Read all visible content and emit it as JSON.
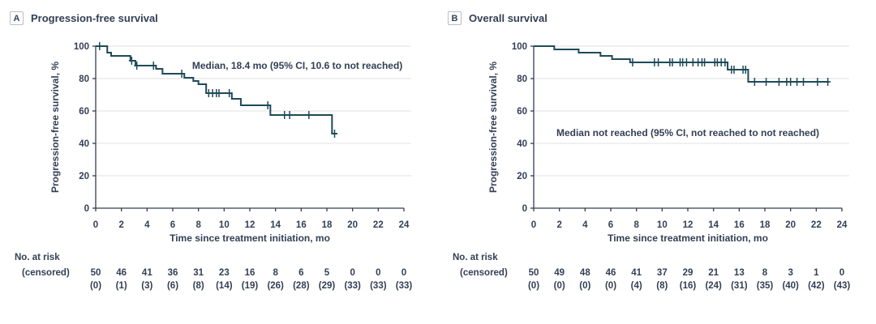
{
  "colors": {
    "curve": "#1f4a58",
    "text": "#333f54",
    "axis": "#333f54",
    "grid": "#e8e8e8",
    "panel_box_border": "#b9bdc4",
    "background": "#ffffff"
  },
  "chart_data": [
    {
      "type": "line",
      "subtype": "kaplan-meier-step",
      "panel_label": "A",
      "title": "Progression-free survival",
      "annotation": "Median, 18.4 mo (95% CI, 10.6 to not reached)",
      "annotation_anchor": {
        "t": 15.7,
        "s": 88
      },
      "xlabel": "Time since treatment initiation, mo",
      "ylabel": "Progression-free survival, %",
      "xlim": [
        0,
        24
      ],
      "ylim": [
        0,
        100
      ],
      "xticks": [
        0,
        2,
        4,
        6,
        8,
        10,
        12,
        14,
        16,
        18,
        20,
        22,
        24
      ],
      "yticks": [
        0,
        20,
        40,
        60,
        80,
        100
      ],
      "grid": "horizontal",
      "steps": [
        [
          0,
          100
        ],
        [
          0.9,
          96
        ],
        [
          1.2,
          94
        ],
        [
          2.7,
          91
        ],
        [
          3.1,
          88
        ],
        [
          4.7,
          86
        ],
        [
          5.2,
          83
        ],
        [
          6.9,
          80.5
        ],
        [
          7.6,
          78.5
        ],
        [
          8.0,
          76.5
        ],
        [
          8.6,
          71
        ],
        [
          10.6,
          67.5
        ],
        [
          11.3,
          63.5
        ],
        [
          13.6,
          57.5
        ],
        [
          18.4,
          46
        ]
      ],
      "curve_end_t": 18.8,
      "censor_marks": [
        [
          0.3,
          100
        ],
        [
          2.8,
          91
        ],
        [
          3.2,
          88
        ],
        [
          4.5,
          88
        ],
        [
          6.7,
          83
        ],
        [
          8.8,
          71
        ],
        [
          9.1,
          71
        ],
        [
          9.4,
          71
        ],
        [
          9.6,
          71
        ],
        [
          10.4,
          71
        ],
        [
          13.4,
          63.5
        ],
        [
          14.7,
          57.5
        ],
        [
          15.1,
          57.5
        ],
        [
          16.6,
          57.5
        ],
        [
          18.6,
          46
        ]
      ],
      "risk_table": {
        "row1_label": "No. at risk",
        "row2_label": "(censored)",
        "at_risk": [
          "50",
          "46",
          "41",
          "36",
          "31",
          "23",
          "16",
          "8",
          "6",
          "5",
          "0",
          "0",
          "0"
        ],
        "censored": [
          "(0)",
          "(1)",
          "(3)",
          "(6)",
          "(8)",
          "(14)",
          "(19)",
          "(26)",
          "(28)",
          "(29)",
          "(33)",
          "(33)",
          "(33)"
        ]
      }
    },
    {
      "type": "line",
      "subtype": "kaplan-meier-step",
      "panel_label": "B",
      "title": "Overall survival",
      "annotation": "Median not reached (95% CI, not reached to not reached)",
      "annotation_anchor": {
        "t": 12,
        "s": 46.5
      },
      "xlabel": "Time since treatment initiation, mo",
      "ylabel": "Progression-free survival, %",
      "xlim": [
        0,
        24
      ],
      "ylim": [
        0,
        100
      ],
      "xticks": [
        0,
        2,
        4,
        6,
        8,
        10,
        12,
        14,
        16,
        18,
        20,
        22,
        24
      ],
      "yticks": [
        0,
        20,
        40,
        60,
        80,
        100
      ],
      "grid": "horizontal",
      "steps": [
        [
          0,
          100
        ],
        [
          1.6,
          98
        ],
        [
          3.5,
          96
        ],
        [
          5.2,
          94
        ],
        [
          6.1,
          92
        ],
        [
          7.5,
          90
        ],
        [
          15.1,
          85.5
        ],
        [
          16.7,
          78
        ]
      ],
      "curve_end_t": 23.0,
      "censor_marks": [
        [
          7.7,
          90
        ],
        [
          9.4,
          90
        ],
        [
          9.7,
          90
        ],
        [
          10.6,
          90
        ],
        [
          10.8,
          90
        ],
        [
          11.4,
          90
        ],
        [
          11.6,
          90
        ],
        [
          11.9,
          90
        ],
        [
          12.4,
          90
        ],
        [
          12.8,
          90
        ],
        [
          13.1,
          90
        ],
        [
          13.3,
          90
        ],
        [
          14.1,
          90
        ],
        [
          14.3,
          90
        ],
        [
          14.6,
          90
        ],
        [
          14.9,
          90
        ],
        [
          15.4,
          85.5
        ],
        [
          15.6,
          85.5
        ],
        [
          16.3,
          85.5
        ],
        [
          16.5,
          85.5
        ],
        [
          17.2,
          78
        ],
        [
          18.1,
          78
        ],
        [
          19.1,
          78
        ],
        [
          19.7,
          78
        ],
        [
          20.0,
          78
        ],
        [
          20.5,
          78
        ],
        [
          21.0,
          78
        ],
        [
          22.1,
          78
        ],
        [
          22.9,
          78
        ]
      ],
      "risk_table": {
        "row1_label": "No. at risk",
        "row2_label": "(censored)",
        "at_risk": [
          "50",
          "49",
          "48",
          "46",
          "41",
          "37",
          "29",
          "21",
          "13",
          "8",
          "3",
          "1",
          "0"
        ],
        "censored": [
          "(0)",
          "(0)",
          "(0)",
          "(0)",
          "(4)",
          "(8)",
          "(16)",
          "(24)",
          "(31)",
          "(35)",
          "(40)",
          "(42)",
          "(43)"
        ]
      }
    }
  ]
}
